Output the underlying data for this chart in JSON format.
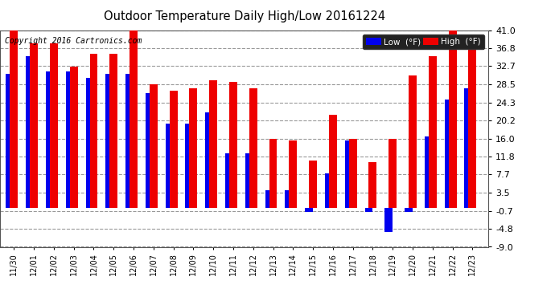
{
  "title": "Outdoor Temperature Daily High/Low 20161224",
  "copyright": "Copyright 2016 Cartronics.com",
  "dates": [
    "11/30",
    "12/01",
    "12/02",
    "12/03",
    "12/04",
    "12/05",
    "12/06",
    "12/07",
    "12/08",
    "12/09",
    "12/10",
    "12/11",
    "12/12",
    "12/13",
    "12/14",
    "12/15",
    "12/16",
    "12/17",
    "12/18",
    "12/19",
    "12/20",
    "12/21",
    "12/22",
    "12/23"
  ],
  "low": [
    31.0,
    35.0,
    31.5,
    31.5,
    30.0,
    31.0,
    31.0,
    26.5,
    19.5,
    19.5,
    22.0,
    12.5,
    12.5,
    4.0,
    4.0,
    -1.0,
    8.0,
    15.5,
    -1.0,
    -5.5,
    -1.0,
    16.5,
    25.0,
    27.5
  ],
  "high": [
    41.0,
    38.0,
    38.0,
    32.5,
    35.5,
    35.5,
    41.5,
    28.5,
    27.0,
    27.5,
    29.5,
    29.0,
    27.5,
    16.0,
    15.5,
    11.0,
    21.5,
    16.0,
    10.5,
    16.0,
    30.5,
    35.0,
    41.0,
    37.0
  ],
  "low_color": "#0000EE",
  "high_color": "#EE0000",
  "bg_color": "#FFFFFF",
  "plot_bg_color": "#FFFFFF",
  "grid_color": "#999999",
  "ylim": [
    -9.0,
    41.0
  ],
  "yticks": [
    41.0,
    36.8,
    32.7,
    28.5,
    24.3,
    20.2,
    16.0,
    11.8,
    7.7,
    3.5,
    -0.7,
    -4.8,
    -9.0
  ],
  "legend_low_label": "Low  (°F)",
  "legend_high_label": "High  (°F)"
}
